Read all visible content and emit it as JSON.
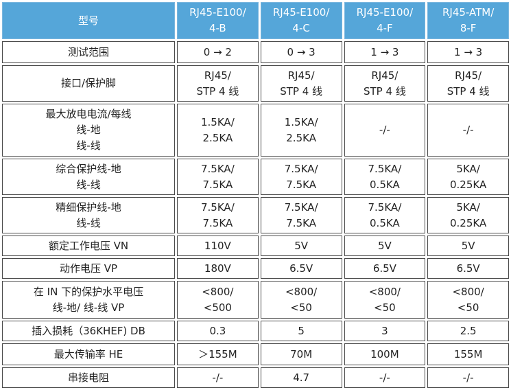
{
  "table": {
    "header": [
      "型号",
      "RJ45-E100/\n4-B",
      "RJ45-E100/\n4-C",
      "RJ45-E100/\n4-F",
      "RJ45-ATM/\n8-F"
    ],
    "rows": [
      [
        "测试范围",
        "0 → 2",
        "0 → 3",
        "1 → 3",
        "1 → 3"
      ],
      [
        "接口/保护脚",
        "RJ45/\nSTP 4 线",
        "RJ45/\nSTP 4 线",
        "RJ45/\nSTP 4 线",
        "RJ45/\nSTP 4 线"
      ],
      [
        "最大放电电流/每线\n线-地\n线-线",
        "1.5KA/\n2.5KA",
        "1.5KA/\n2.5KA",
        "-/-",
        "-/-"
      ],
      [
        "综合保护线-地\n线-线",
        "7.5KA/\n7.5KA",
        "7.5KA/\n7.5KA",
        "7.5KA/\n0.5KA",
        "5KA/\n0.25KA"
      ],
      [
        "精细保护线-地\n线-线",
        "7.5KA/\n7.5KA",
        "7.5KA/\n7.5KA",
        "7.5KA/\n0.5KA",
        "5KA/\n0.25KA"
      ],
      [
        "额定工作电压  VN",
        "110V",
        "5V",
        "5V",
        "5V"
      ],
      [
        "动作电压  VP",
        "180V",
        "6.5V",
        "6.5V",
        "6.5V"
      ],
      [
        "在 IN 下的保护水平电压\n线-地/ 线-线  VP",
        "<800/\n<500",
        "<800/\n<50",
        "<800/\n<50",
        "<800/\n<50"
      ],
      [
        "插入损耗（36KHEF) DB",
        "0.3",
        "5",
        "3",
        "2.5"
      ],
      [
        "最大传输率  HE",
        "＞155M",
        "70M",
        "100M",
        "155M"
      ],
      [
        "串接电阻",
        "-/-",
        "4.7",
        "-/-",
        "-/-"
      ]
    ]
  }
}
